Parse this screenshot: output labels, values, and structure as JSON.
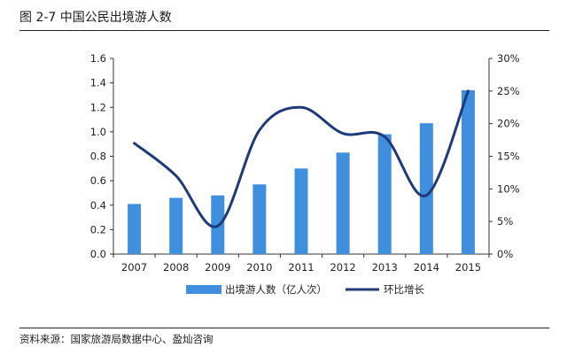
{
  "header": {
    "title": "图 2-7 中国公民出境游人数"
  },
  "footer": {
    "source": "资料来源：国家旅游局数据中心、盈灿咨询"
  },
  "chart_data": {
    "type": "bar",
    "title": "图 2-7 中国公民出境游人数",
    "categories": [
      "2007",
      "2008",
      "2009",
      "2010",
      "2011",
      "2012",
      "2013",
      "2014",
      "2015"
    ],
    "series": [
      {
        "name": "出境游人数（亿人次）",
        "type": "bar",
        "axis": "left",
        "values": [
          0.41,
          0.46,
          0.48,
          0.57,
          0.7,
          0.83,
          0.98,
          1.07,
          1.34
        ]
      },
      {
        "name": "环比增长",
        "type": "line",
        "axis": "right",
        "values": [
          0.17,
          0.12,
          0.043,
          0.19,
          0.225,
          0.185,
          0.18,
          0.09,
          0.25
        ]
      }
    ],
    "y_left": {
      "min": 0,
      "max": 1.6,
      "step": 0.2,
      "tick_labels": [
        "0.0",
        "0.2",
        "0.4",
        "0.6",
        "0.8",
        "1.0",
        "1.2",
        "1.4",
        "1.6"
      ]
    },
    "y_right": {
      "min": 0,
      "max": 0.3,
      "step": 0.05,
      "tick_labels": [
        "0%",
        "5%",
        "10%",
        "15%",
        "20%",
        "25%",
        "30%"
      ]
    },
    "grid": false,
    "legend_position": "bottom",
    "colors": {
      "bar": "#3f8fde",
      "line": "#1f3a78",
      "axis": "#333333"
    }
  }
}
